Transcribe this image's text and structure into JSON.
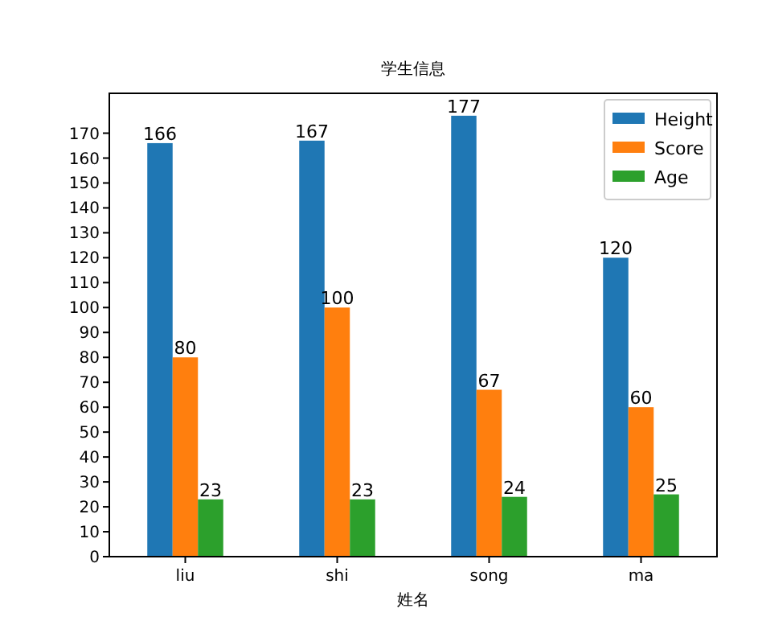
{
  "chart_data": {
    "type": "bar",
    "title": "学生信息",
    "xlabel": "姓名",
    "categories": [
      "liu",
      "shi",
      "song",
      "ma"
    ],
    "series": [
      {
        "name": "Height",
        "color": "#1f77b4",
        "values": [
          166,
          167,
          177,
          120
        ]
      },
      {
        "name": "Score",
        "color": "#ff7f0e",
        "values": [
          80,
          100,
          67,
          60
        ]
      },
      {
        "name": "Age",
        "color": "#2ca02c",
        "values": [
          23,
          23,
          24,
          25
        ]
      }
    ],
    "ylim": [
      0,
      186
    ],
    "yticks": [
      0,
      10,
      20,
      30,
      40,
      50,
      60,
      70,
      80,
      90,
      100,
      110,
      120,
      130,
      140,
      150,
      160,
      170
    ],
    "legend": "top right",
    "data_labels": true,
    "grid": false
  }
}
